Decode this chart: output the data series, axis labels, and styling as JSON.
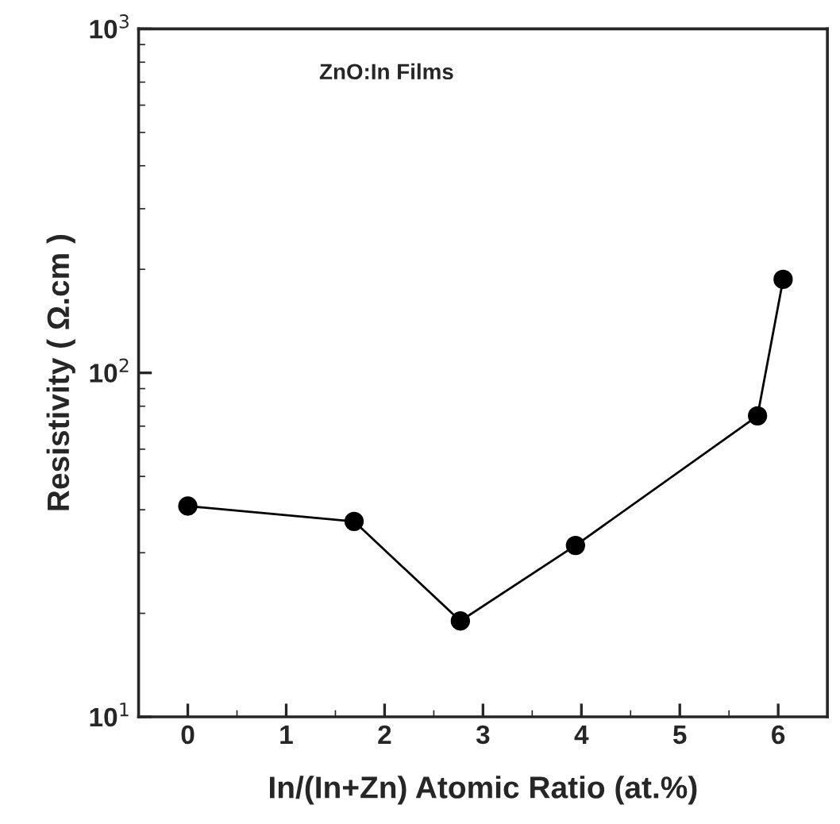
{
  "chart_data": {
    "type": "line",
    "x": [
      0,
      1.69,
      2.77,
      3.94,
      5.79,
      6.05
    ],
    "series": [
      {
        "color": "#000000",
        "values": [
          41,
          37,
          19,
          31.5,
          75,
          187
        ]
      }
    ],
    "xlabel": "In/(In+Zn) Atomic Ratio (at.%)",
    "ylabel": "Resistivity ( Ω.cm )",
    "annotations": [
      "ZnO:In Films"
    ],
    "log": "y",
    "xlim": [
      -0.5,
      6.5
    ],
    "xticks": [
      0,
      1,
      2,
      3,
      4,
      5,
      6
    ],
    "ylim": [
      10,
      1000
    ],
    "yticks": [
      {
        "value": 10,
        "label": "10$^{1}$"
      },
      {
        "value": 100,
        "label": "10$^{2}$"
      },
      {
        "value": 1000,
        "label": "10$^{3}$"
      }
    ],
    "marker": "circle",
    "line_style": "solid",
    "grid": false,
    "legend": false
  }
}
